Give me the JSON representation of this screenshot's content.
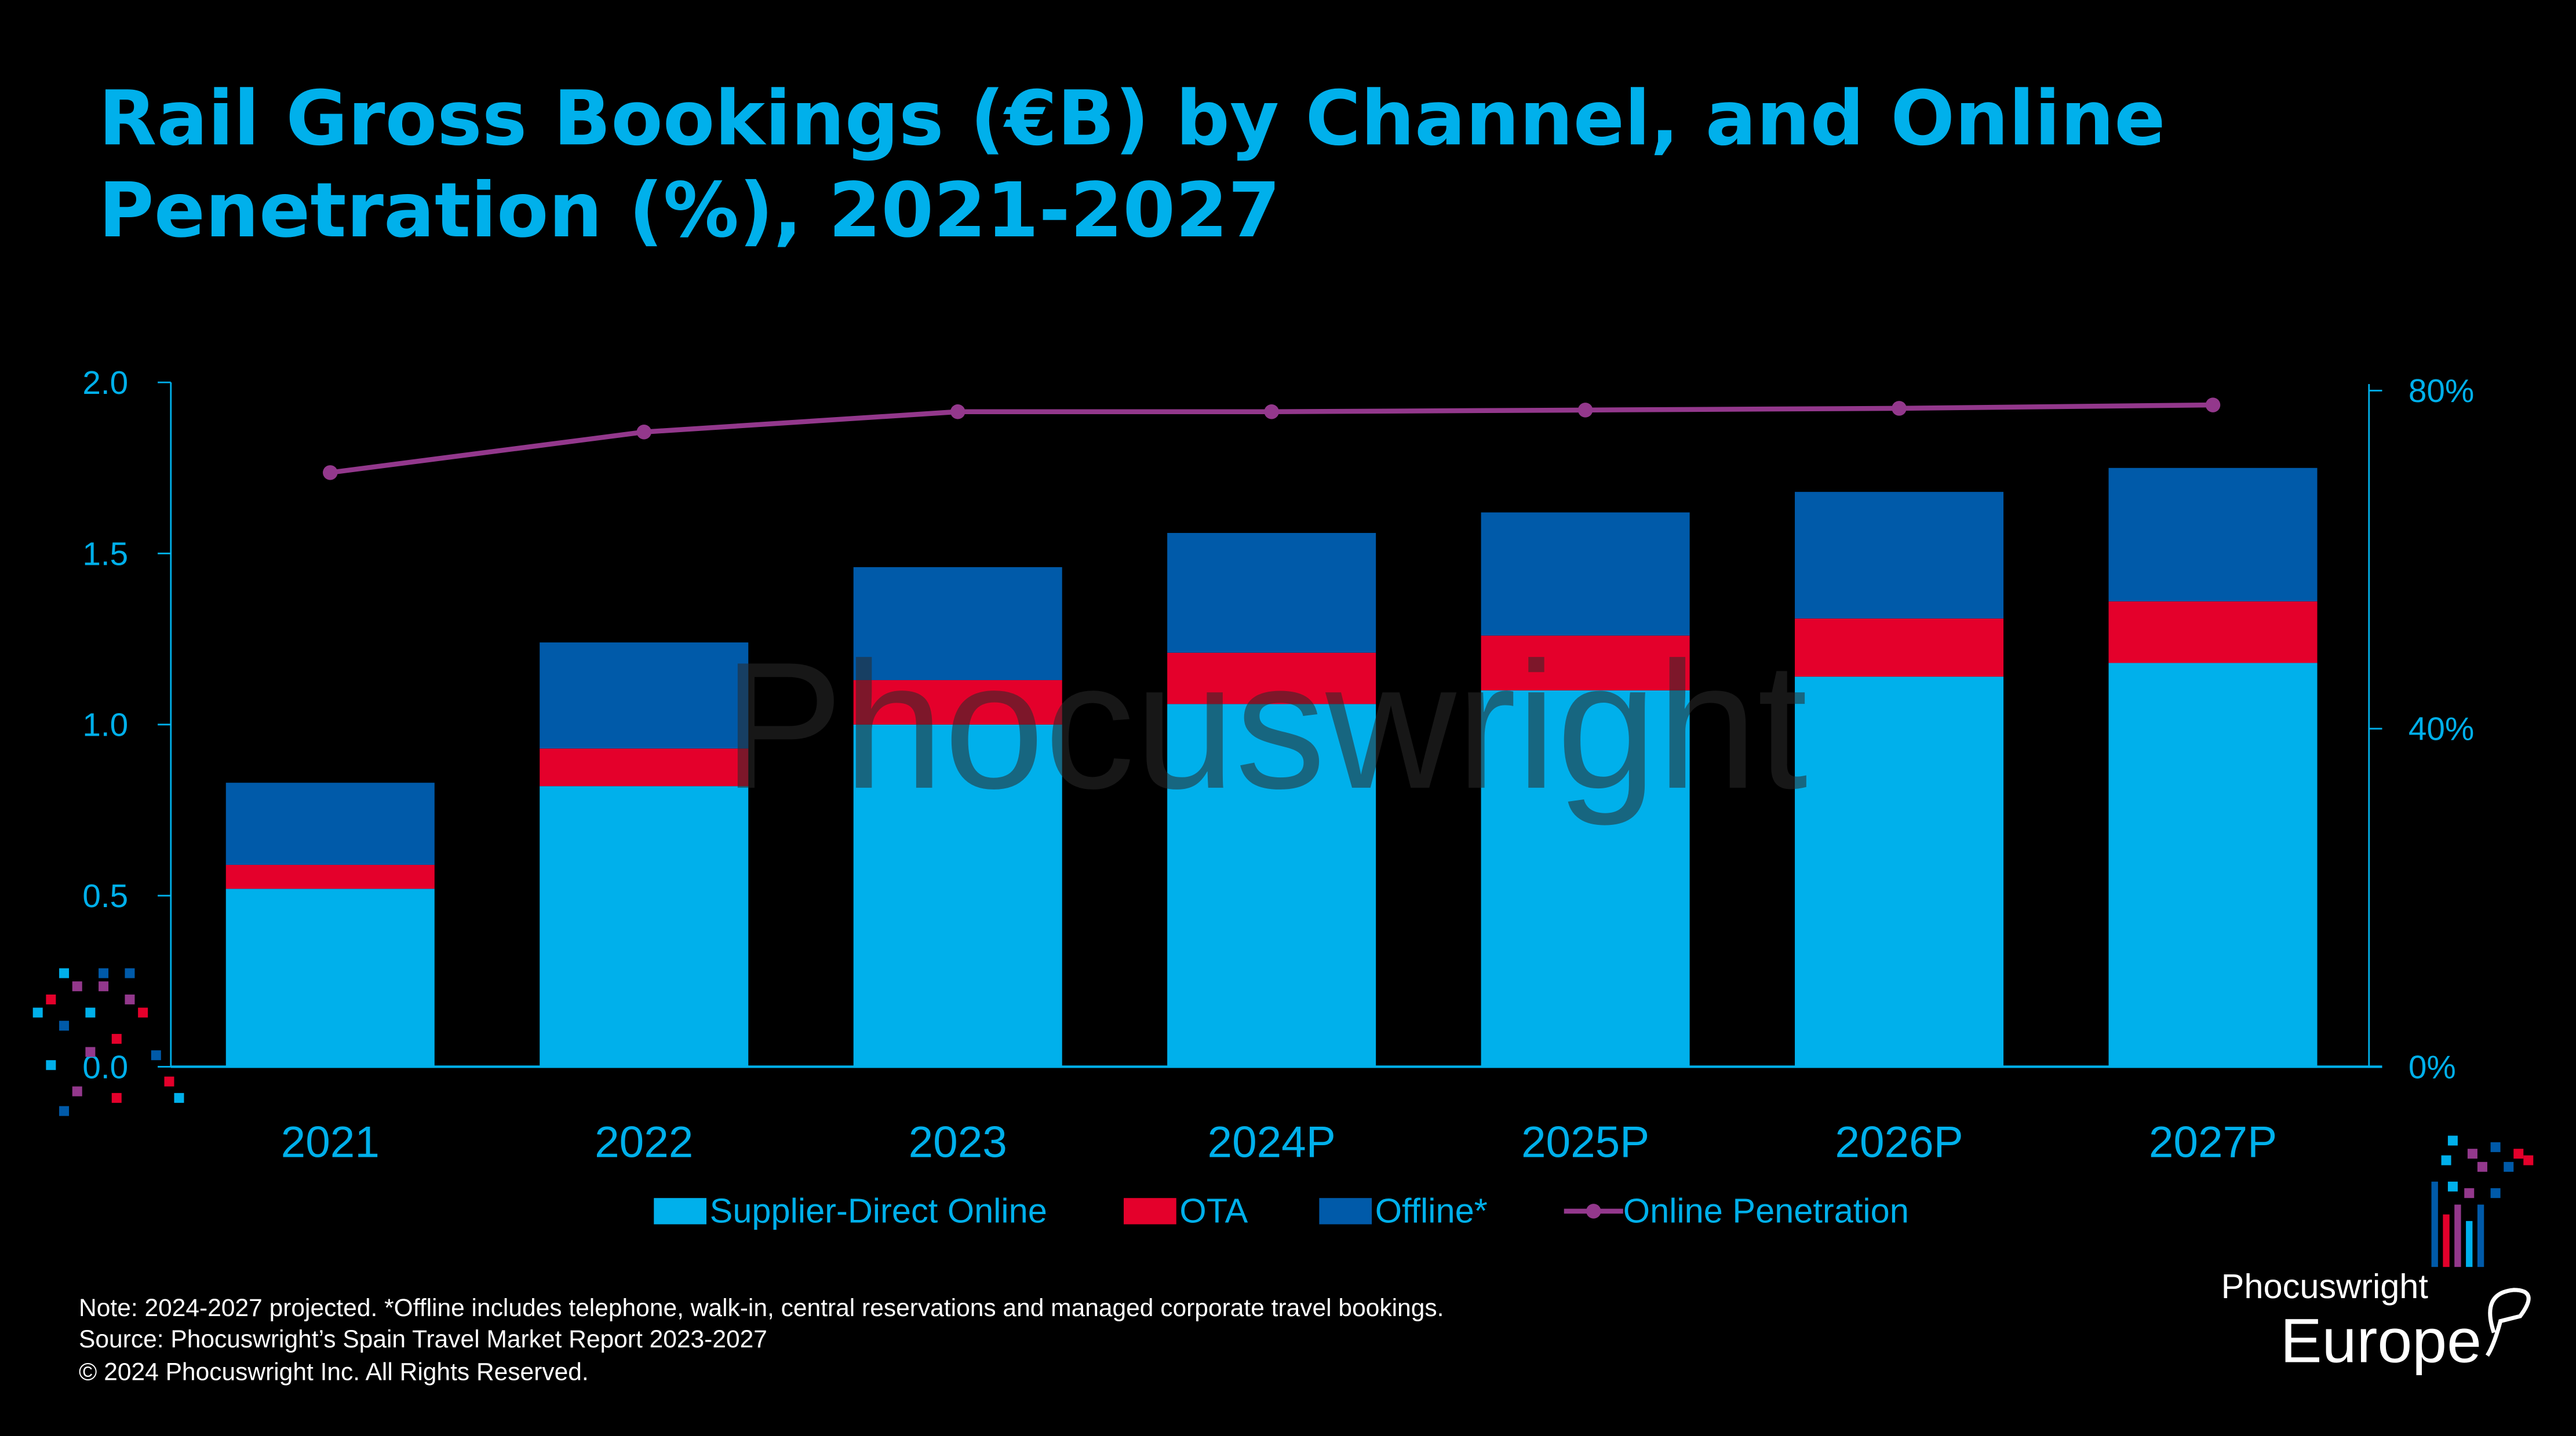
{
  "chart_data": {
    "type": "bar",
    "stacked": true,
    "title_line1": "Rail Gross Bookings (€B) by Channel, and Online",
    "title_line2": "Penetration (%), 2021-2027",
    "categories": [
      "2021",
      "2022",
      "2023",
      "2024P",
      "2025P",
      "2026P",
      "2027P"
    ],
    "series": [
      {
        "name": "Supplier-Direct Online",
        "color": "#00b0eb",
        "axis": "left",
        "values": [
          0.52,
          0.82,
          1.0,
          1.06,
          1.1,
          1.14,
          1.18
        ]
      },
      {
        "name": "OTA",
        "color": "#e4002b",
        "axis": "left",
        "values": [
          0.07,
          0.11,
          0.13,
          0.15,
          0.16,
          0.17,
          0.18
        ]
      },
      {
        "name": "Offline*",
        "color": "#005aa9",
        "axis": "left",
        "values": [
          0.24,
          0.31,
          0.33,
          0.35,
          0.36,
          0.37,
          0.39
        ]
      },
      {
        "name": "Online Penetration",
        "color": "#93388c",
        "axis": "right",
        "type": "line",
        "values": [
          70.3,
          75.1,
          77.5,
          77.5,
          77.7,
          77.9,
          78.3
        ]
      }
    ],
    "yleft": {
      "ylim": [
        0,
        2.0
      ],
      "ticks": [
        "0.0",
        "0.5",
        "1.0",
        "1.5",
        "2.0"
      ]
    },
    "yright": {
      "ylim": [
        0,
        80
      ],
      "ticks": [
        "0%",
        "40%",
        "80%"
      ]
    },
    "legend_position": "bottom",
    "grid": false,
    "watermark": "Phocuswright"
  },
  "footer": {
    "note": "Note: 2024-2027 projected. *Offline includes telephone, walk-in, central reservations and managed corporate travel bookings.",
    "source": "Source: Phocuswright’s Spain Travel Market Report 2023-2027",
    "copyright": "© 2024 Phocuswright Inc. All Rights Reserved."
  },
  "logo": {
    "line1": "Phocuswright",
    "line2": "Europe"
  },
  "colors": {
    "background": "#000000",
    "accent": "#00b0eb"
  }
}
